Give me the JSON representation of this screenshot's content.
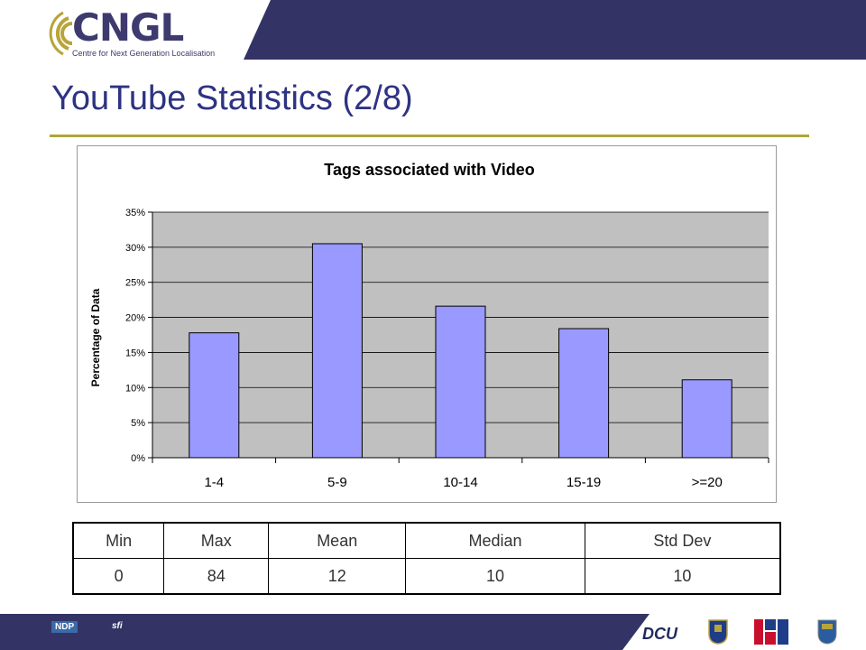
{
  "brand": {
    "logo_word": "CNGL",
    "logo_subtitle": "Centre for Next Generation Localisation",
    "navy": "#333366",
    "gold": "#b8a43a"
  },
  "slide": {
    "title": "YouTube Statistics (2/8)"
  },
  "chart_data": {
    "type": "bar",
    "title": "Tags associated with Video",
    "xlabel": "",
    "ylabel": "Percentage of Data",
    "categories": [
      "1-4",
      "5-9",
      "10-14",
      "15-19",
      ">=20"
    ],
    "values": [
      17.8,
      30.5,
      21.6,
      18.4,
      11.1
    ],
    "ylim": [
      0,
      35
    ],
    "yticks": [
      "0%",
      "5%",
      "10%",
      "15%",
      "20%",
      "25%",
      "30%",
      "35%"
    ],
    "bar_color": "#9999ff",
    "plot_background": "#c0c0c0",
    "grid": true,
    "legend": "none"
  },
  "stats_table": {
    "headers": [
      "Min",
      "Max",
      "Mean",
      "Median",
      "Std Dev"
    ],
    "values": [
      "0",
      "84",
      "12",
      "10",
      "10"
    ]
  },
  "footer": {
    "sponsor_left": [
      "NDP",
      "sfi"
    ],
    "sponsor_right": [
      "DCU",
      "ucd-crest-icon",
      "tcd-logo-icon",
      "ul-crest-icon"
    ]
  }
}
